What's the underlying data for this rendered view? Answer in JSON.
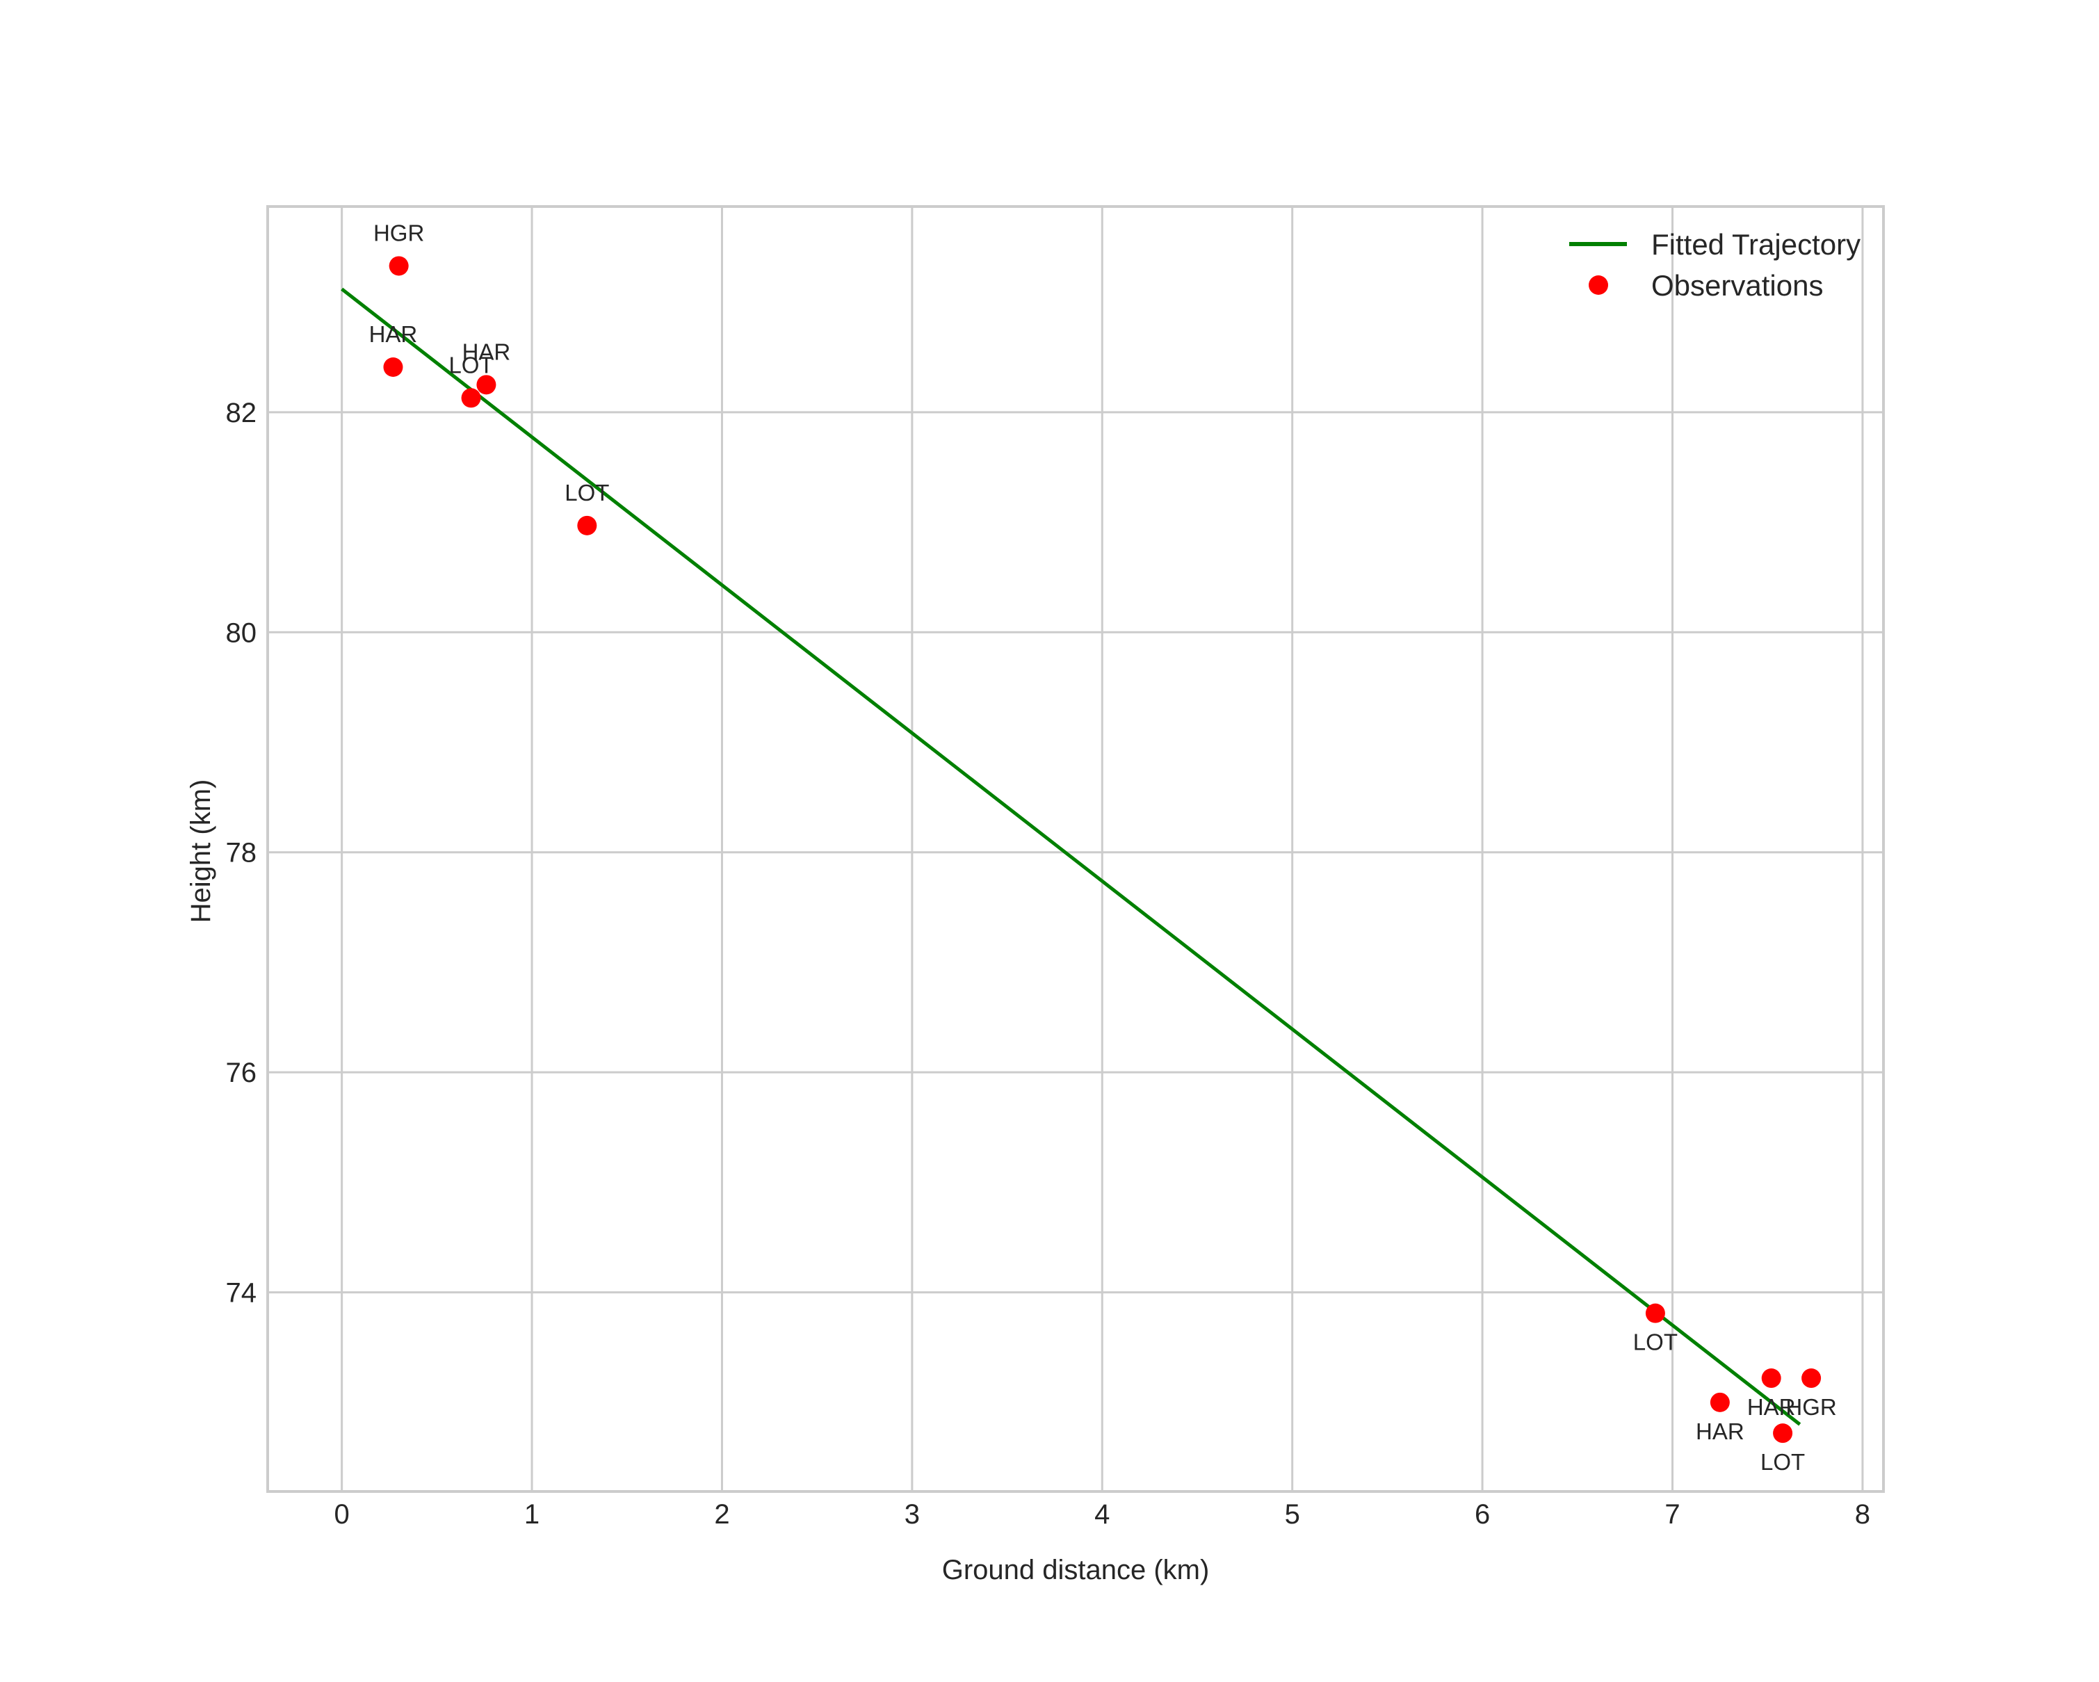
{
  "chart_data": {
    "type": "scatter",
    "title": "",
    "xlabel": "Ground distance (km)",
    "ylabel": "Height (km)",
    "xlim": [
      -0.39,
      8.11
    ],
    "ylim": [
      72.19,
      83.87
    ],
    "xticks": [
      0,
      1,
      2,
      3,
      4,
      5,
      6,
      7,
      8
    ],
    "yticks": [
      74,
      76,
      78,
      80,
      82
    ],
    "grid": true,
    "legend_position": "upper right",
    "legend": [
      {
        "label": "Fitted Trajectory",
        "type": "line",
        "color": "#008000"
      },
      {
        "label": "Observations",
        "type": "marker",
        "color": "#ff0000"
      }
    ],
    "series": [
      {
        "name": "Fitted Trajectory",
        "type": "line",
        "color": "#008000",
        "x": [
          0.0,
          7.67
        ],
        "y": [
          83.12,
          72.8
        ]
      },
      {
        "name": "Observations",
        "type": "scatter",
        "color": "#ff0000",
        "points": [
          {
            "station": "HGR",
            "x": 0.3,
            "y": 83.33,
            "label_pos": "above"
          },
          {
            "station": "HAR",
            "x": 0.27,
            "y": 82.41,
            "label_pos": "above"
          },
          {
            "station": "LOT",
            "x": 0.68,
            "y": 82.13,
            "label_pos": "above"
          },
          {
            "station": "HAR",
            "x": 0.76,
            "y": 82.25,
            "label_pos": "above"
          },
          {
            "station": "LOT",
            "x": 1.29,
            "y": 80.97,
            "label_pos": "above"
          },
          {
            "station": "LOT",
            "x": 6.91,
            "y": 73.81,
            "label_pos": "below"
          },
          {
            "station": "HAR",
            "x": 7.25,
            "y": 73.0,
            "label_pos": "below"
          },
          {
            "station": "HAR",
            "x": 7.52,
            "y": 73.22,
            "label_pos": "below"
          },
          {
            "station": "HGR",
            "x": 7.73,
            "y": 73.22,
            "label_pos": "below"
          },
          {
            "station": "LOT",
            "x": 7.58,
            "y": 72.72,
            "label_pos": "below"
          }
        ]
      }
    ]
  }
}
